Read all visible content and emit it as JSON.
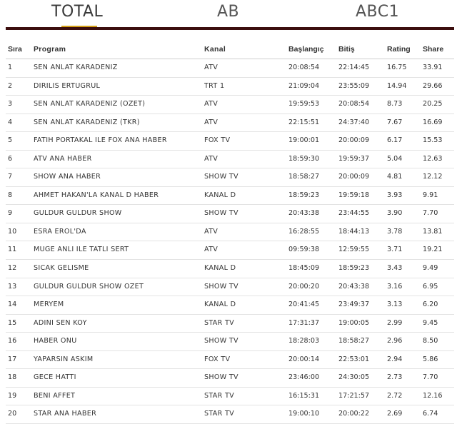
{
  "tabs": [
    "TOTAL",
    "AB",
    "ABC1"
  ],
  "active_tab": "TOTAL",
  "colors": {
    "accent": "#d4a017",
    "rule": "#3c0e0e"
  },
  "table": {
    "headers": [
      "Sıra",
      "Program",
      "Kanal",
      "Başlangıç",
      "Bitiş",
      "Rating",
      "Share"
    ],
    "rows": [
      [
        "1",
        "SEN ANLAT KARADENIZ",
        "ATV",
        "20:08:54",
        "22:14:45",
        "16.75",
        "33.91"
      ],
      [
        "2",
        "DIRILIS ERTUGRUL",
        "TRT 1",
        "21:09:04",
        "23:55:09",
        "14.94",
        "29.66"
      ],
      [
        "3",
        "SEN ANLAT KARADENIZ (OZET)",
        "ATV",
        "19:59:53",
        "20:08:54",
        "8.73",
        "20.25"
      ],
      [
        "4",
        "SEN ANLAT KARADENIZ (TKR)",
        "ATV",
        "22:15:51",
        "24:37:40",
        "7.67",
        "16.69"
      ],
      [
        "5",
        "FATIH PORTAKAL ILE FOX ANA HABER",
        "FOX TV",
        "19:00:01",
        "20:00:09",
        "6.17",
        "15.53"
      ],
      [
        "6",
        "ATV ANA HABER",
        "ATV",
        "18:59:30",
        "19:59:37",
        "5.04",
        "12.63"
      ],
      [
        "7",
        "SHOW ANA HABER",
        "SHOW TV",
        "18:58:27",
        "20:00:09",
        "4.81",
        "12.12"
      ],
      [
        "8",
        "AHMET HAKAN'LA KANAL D HABER",
        "KANAL D",
        "18:59:23",
        "19:59:18",
        "3.93",
        "9.91"
      ],
      [
        "9",
        "GULDUR GULDUR SHOW",
        "SHOW TV",
        "20:43:38",
        "23:44:55",
        "3.90",
        "7.70"
      ],
      [
        "10",
        "ESRA EROL'DA",
        "ATV",
        "16:28:55",
        "18:44:13",
        "3.78",
        "13.81"
      ],
      [
        "11",
        "MUGE ANLI ILE TATLI SERT",
        "ATV",
        "09:59:38",
        "12:59:55",
        "3.71",
        "19.21"
      ],
      [
        "12",
        "SICAK GELISME",
        "KANAL D",
        "18:45:09",
        "18:59:23",
        "3.43",
        "9.49"
      ],
      [
        "13",
        "GULDUR GULDUR SHOW OZET",
        "SHOW TV",
        "20:00:20",
        "20:43:38",
        "3.16",
        "6.95"
      ],
      [
        "14",
        "MERYEM",
        "KANAL D",
        "20:41:45",
        "23:49:37",
        "3.13",
        "6.20"
      ],
      [
        "15",
        "ADINI SEN KOY",
        "STAR TV",
        "17:31:37",
        "19:00:05",
        "2.99",
        "9.45"
      ],
      [
        "16",
        "HABER ONU",
        "SHOW TV",
        "18:28:03",
        "18:58:27",
        "2.96",
        "8.50"
      ],
      [
        "17",
        "YAPARSIN ASKIM",
        "FOX TV",
        "20:00:14",
        "22:53:01",
        "2.94",
        "5.86"
      ],
      [
        "18",
        "GECE HATTI",
        "SHOW TV",
        "23:46:00",
        "24:30:05",
        "2.73",
        "7.70"
      ],
      [
        "19",
        "BENI AFFET",
        "STAR TV",
        "16:15:31",
        "17:21:57",
        "2.72",
        "12.16"
      ],
      [
        "20",
        "STAR ANA HABER",
        "STAR TV",
        "19:00:10",
        "20:00:22",
        "2.69",
        "6.74"
      ]
    ]
  }
}
